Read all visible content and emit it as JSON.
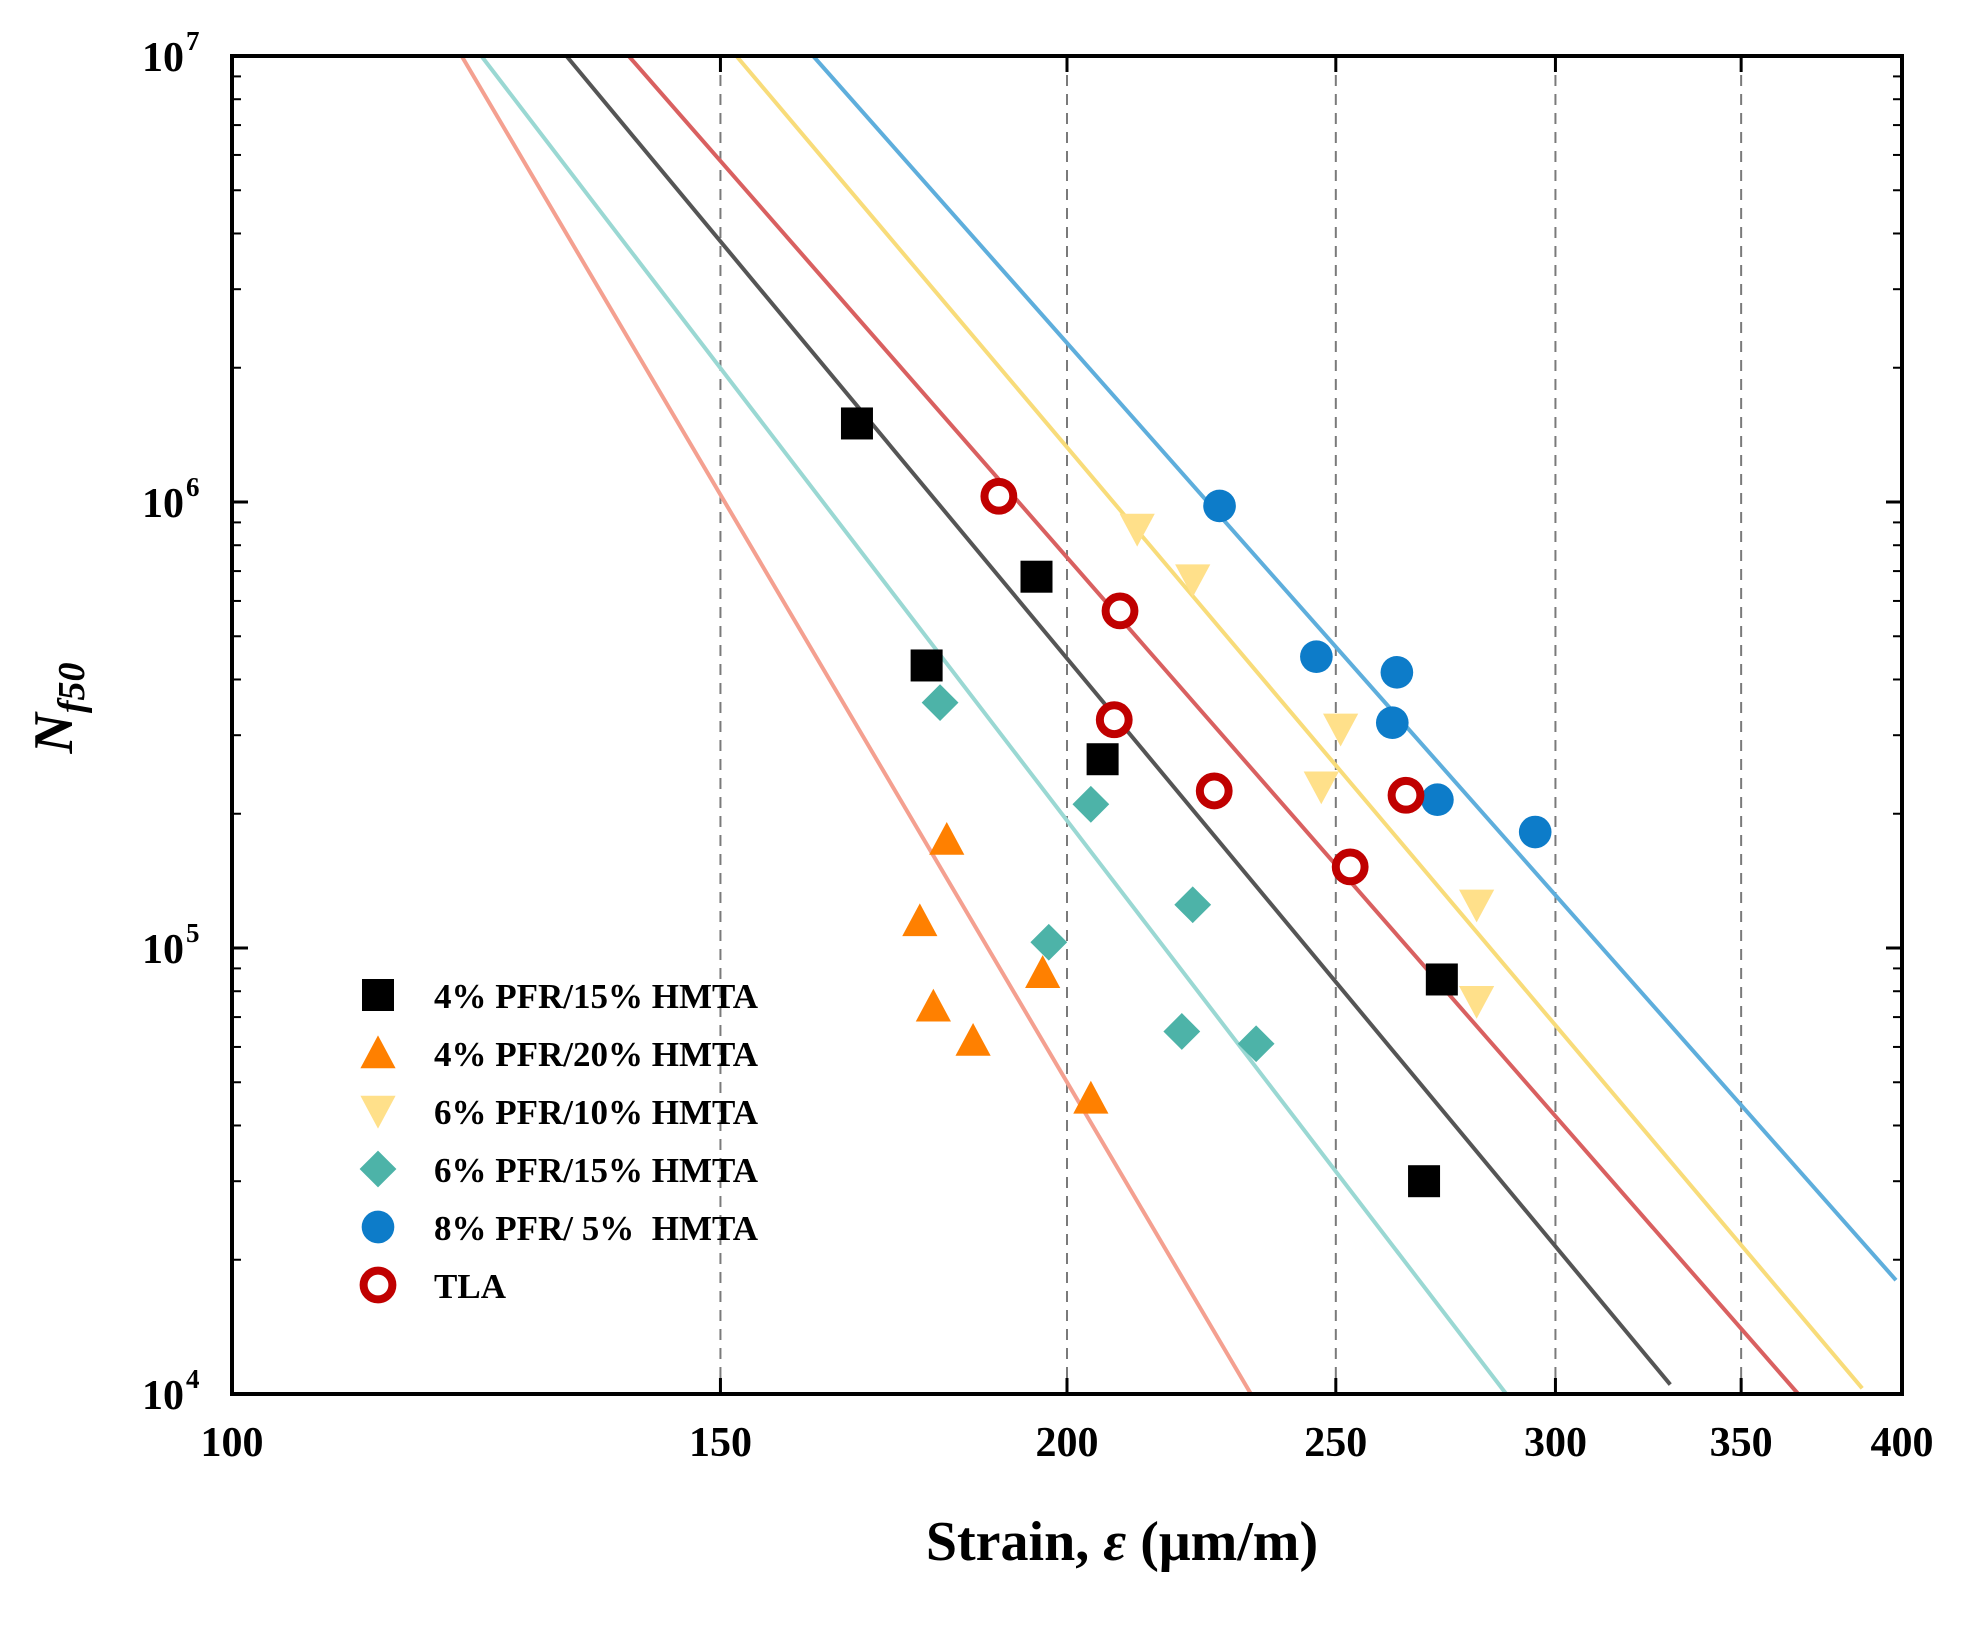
{
  "chart_data": {
    "type": "scatter",
    "xscale": "log",
    "yscale": "log",
    "xlim": [
      100,
      400
    ],
    "ylim": [
      10000,
      10000000
    ],
    "xticks": [
      100,
      150,
      200,
      250,
      300,
      350,
      400
    ],
    "xtick_labels": [
      "100",
      "150",
      "200",
      "250",
      "300",
      "350",
      "400"
    ],
    "ytick_labels": [
      {
        "value": 10000,
        "base": "10",
        "exp": "4"
      },
      {
        "value": 100000,
        "base": "10",
        "exp": "5"
      },
      {
        "value": 1000000,
        "base": "10",
        "exp": "6"
      },
      {
        "value": 10000000,
        "base": "10",
        "exp": "7"
      }
    ],
    "vgrid": [
      150,
      200,
      250,
      300,
      350
    ],
    "xlabel": {
      "main": "Strain, ",
      "symbol": "ε",
      "unit": " (μm/m)"
    },
    "ylabel": {
      "main": "N",
      "sub": "f50"
    },
    "legend_position": "lower-left",
    "series": [
      {
        "name": "4% PFR/15% HMTA",
        "marker": "square",
        "color": "#000000",
        "line_color": "#555555",
        "points": [
          [
            168,
            1500000
          ],
          [
            195,
            680000
          ],
          [
            178,
            430000
          ],
          [
            206,
            265000
          ],
          [
            273,
            85000
          ],
          [
            269,
            30000
          ]
        ],
        "fit": [
          [
            132,
            10000000
          ],
          [
            330,
            10500
          ]
        ]
      },
      {
        "name": "4% PFR/20% HMTA",
        "marker": "triangle-up",
        "color": "#FF8000",
        "line_color": "#F4A090",
        "points": [
          [
            181,
            175000
          ],
          [
            177,
            115000
          ],
          [
            179,
            74000
          ],
          [
            185,
            62000
          ],
          [
            196,
            88000
          ],
          [
            204,
            46000
          ]
        ],
        "fit": [
          [
            121,
            10000000
          ],
          [
            233,
            10000
          ]
        ]
      },
      {
        "name": "6% PFR/10% HMTA",
        "marker": "triangle-down",
        "color": "#FFE08A",
        "line_color": "#F8DC7A",
        "points": [
          [
            212,
            870000
          ],
          [
            222,
            670000
          ],
          [
            251,
            310000
          ],
          [
            247,
            230000
          ],
          [
            281,
            125000
          ],
          [
            281,
            76000
          ]
        ],
        "fit": [
          [
            152,
            10000000
          ],
          [
            387,
            10300
          ]
        ]
      },
      {
        "name": "6% PFR/15% HMTA",
        "marker": "diamond",
        "color": "#4DB3A8",
        "line_color": "#9AD8D3",
        "points": [
          [
            180,
            355000
          ],
          [
            204,
            210000
          ],
          [
            222,
            125000
          ],
          [
            197,
            103000
          ],
          [
            220,
            65000
          ],
          [
            234,
            61000
          ]
        ],
        "fit": [
          [
            123,
            10000000
          ],
          [
            288,
            10000
          ]
        ]
      },
      {
        "name": "8% PFR/ 5%  HMTA",
        "marker": "circle",
        "color": "#0D7CC9",
        "line_color": "#5EAEDC",
        "points": [
          [
            227,
            980000
          ],
          [
            246,
            450000
          ],
          [
            263,
            415000
          ],
          [
            262,
            320000
          ],
          [
            272,
            215000
          ],
          [
            295,
            182000
          ]
        ],
        "fit": [
          [
            162,
            10000000
          ],
          [
            398,
            18000
          ]
        ]
      },
      {
        "name": "TLA",
        "marker": "open-circle",
        "color": "#C00000",
        "line_color": "#D96060",
        "points": [
          [
            189,
            1030000
          ],
          [
            209,
            570000
          ],
          [
            208,
            325000
          ],
          [
            226,
            225000
          ],
          [
            265,
            220000
          ],
          [
            253,
            152000
          ]
        ],
        "fit": [
          [
            139,
            10000000
          ],
          [
            367,
            10000
          ]
        ]
      }
    ]
  }
}
